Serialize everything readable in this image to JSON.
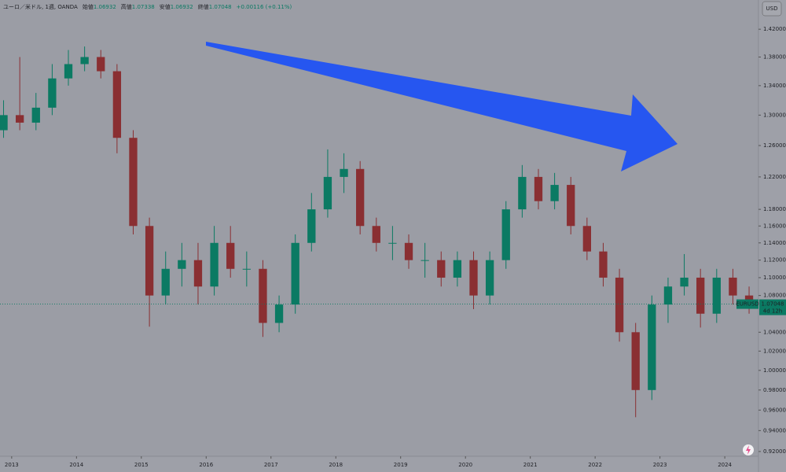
{
  "chart_data": {
    "type": "candlestick",
    "title": "ユーロ／米ドル, 1週, OANDA",
    "ohlc_legend": [
      {
        "label": "始値",
        "value": "1.06932"
      },
      {
        "label": "高値",
        "value": "1.07338"
      },
      {
        "label": "安値",
        "value": "1.06932"
      },
      {
        "label": "終値",
        "value": "1.07048"
      },
      {
        "label": "+0.00116 (+0.11%)"
      }
    ],
    "currency": "USD",
    "symbol": "EURUSD",
    "last_price": 1.07048,
    "countdown": "4d 12h",
    "x": [
      2012.875,
      2013.125,
      2013.375,
      2013.625,
      2013.875,
      2014.125,
      2014.375,
      2014.625,
      2014.875,
      2015.125,
      2015.375,
      2015.625,
      2015.875,
      2016.125,
      2016.375,
      2016.625,
      2016.875,
      2017.125,
      2017.375,
      2017.625,
      2017.875,
      2018.125,
      2018.375,
      2018.625,
      2018.875,
      2019.125,
      2019.375,
      2019.625,
      2019.875,
      2020.125,
      2020.375,
      2020.625,
      2020.875,
      2021.125,
      2021.375,
      2021.625,
      2021.875,
      2022.125,
      2022.375,
      2022.625,
      2022.875,
      2023.125,
      2023.375,
      2023.625,
      2023.875,
      2024.125,
      2024.375
    ],
    "open": [
      1.28,
      1.3,
      1.29,
      1.31,
      1.35,
      1.37,
      1.38,
      1.36,
      1.27,
      1.16,
      1.08,
      1.11,
      1.12,
      1.09,
      1.14,
      1.11,
      1.11,
      1.05,
      1.07,
      1.14,
      1.18,
      1.22,
      1.23,
      1.16,
      1.14,
      1.14,
      1.12,
      1.12,
      1.1,
      1.12,
      1.08,
      1.12,
      1.18,
      1.22,
      1.19,
      1.21,
      1.16,
      1.13,
      1.1,
      1.04,
      0.98,
      1.07,
      1.09,
      1.1,
      1.06,
      1.1,
      1.08
    ],
    "high": [
      1.32,
      1.38,
      1.33,
      1.37,
      1.39,
      1.395,
      1.39,
      1.37,
      1.28,
      1.17,
      1.13,
      1.14,
      1.14,
      1.16,
      1.16,
      1.13,
      1.12,
      1.08,
      1.15,
      1.2,
      1.255,
      1.25,
      1.24,
      1.17,
      1.16,
      1.15,
      1.14,
      1.13,
      1.13,
      1.13,
      1.13,
      1.19,
      1.235,
      1.23,
      1.225,
      1.22,
      1.17,
      1.14,
      1.11,
      1.05,
      1.08,
      1.1,
      1.127,
      1.11,
      1.11,
      1.11,
      1.09
    ],
    "low": [
      1.27,
      1.28,
      1.28,
      1.3,
      1.34,
      1.36,
      1.35,
      1.25,
      1.15,
      1.046,
      1.07,
      1.09,
      1.07,
      1.08,
      1.1,
      1.09,
      1.035,
      1.04,
      1.06,
      1.13,
      1.17,
      1.2,
      1.15,
      1.13,
      1.12,
      1.11,
      1.1,
      1.09,
      1.09,
      1.065,
      1.07,
      1.11,
      1.17,
      1.18,
      1.18,
      1.15,
      1.12,
      1.09,
      1.03,
      0.953,
      0.97,
      1.05,
      1.08,
      1.045,
      1.05,
      1.07,
      1.06
    ],
    "close": [
      1.3,
      1.29,
      1.31,
      1.35,
      1.37,
      1.38,
      1.36,
      1.27,
      1.16,
      1.08,
      1.11,
      1.12,
      1.09,
      1.14,
      1.11,
      1.11,
      1.05,
      1.07,
      1.14,
      1.18,
      1.22,
      1.23,
      1.16,
      1.14,
      1.14,
      1.12,
      1.12,
      1.1,
      1.12,
      1.08,
      1.12,
      1.18,
      1.22,
      1.19,
      1.21,
      1.16,
      1.13,
      1.1,
      1.04,
      0.98,
      1.07,
      1.09,
      1.1,
      1.06,
      1.1,
      1.08,
      1.07048
    ],
    "up_color": "#0b7a63",
    "down_color": "#8a2f32",
    "xlim": [
      2012.82,
      2024.52
    ],
    "xticks": [
      2013,
      2014,
      2015,
      2016,
      2017,
      2018,
      2019,
      2020,
      2021,
      2022,
      2023,
      2024
    ],
    "log_scale": true,
    "ylim": [
      0.9155,
      1.4633
    ],
    "yticks": [
      {
        "value": 1.42,
        "label": "1.42000"
      },
      {
        "value": 1.38,
        "label": "1.38000"
      },
      {
        "value": 1.34,
        "label": "1.34000"
      },
      {
        "value": 1.3,
        "label": "1.30000"
      },
      {
        "value": 1.26,
        "label": "1.26000"
      },
      {
        "value": 1.22,
        "label": "1.22000"
      },
      {
        "value": 1.18,
        "label": "1.18000"
      },
      {
        "value": 1.16,
        "label": "1.16000"
      },
      {
        "value": 1.14,
        "label": "1.14000"
      },
      {
        "value": 1.12,
        "label": "1.12000"
      },
      {
        "value": 1.1,
        "label": "1.10000"
      },
      {
        "value": 1.08,
        "label": "1.08000"
      },
      {
        "value": 1.04,
        "label": "1.04000"
      },
      {
        "value": 1.02,
        "label": "1.02000"
      },
      {
        "value": 1.0,
        "label": "1.00000"
      },
      {
        "value": 0.98,
        "label": "0.98000"
      },
      {
        "value": 0.96,
        "label": "0.96000"
      },
      {
        "value": 0.94,
        "label": "0.94000"
      },
      {
        "value": 0.92,
        "label": "0.92000"
      }
    ]
  }
}
